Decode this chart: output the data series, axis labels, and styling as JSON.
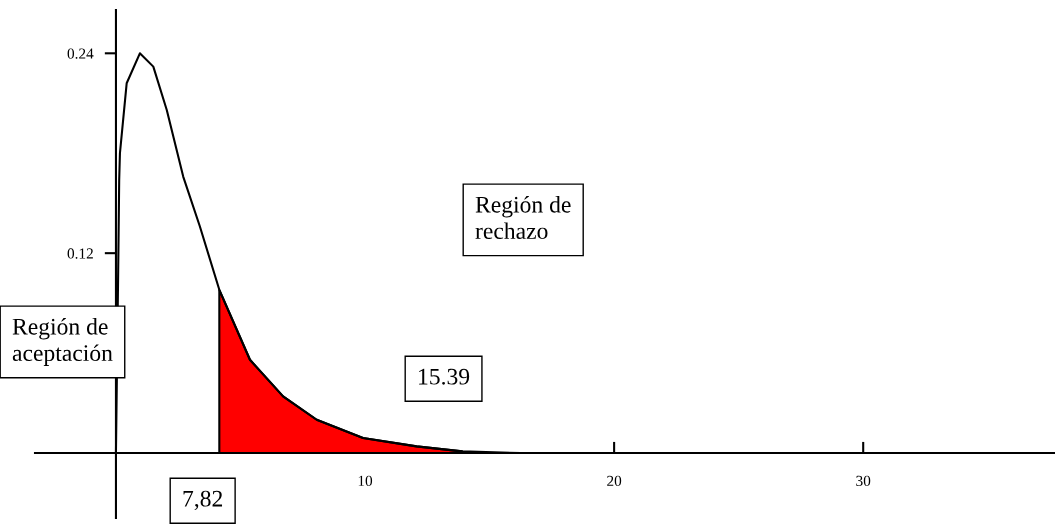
{
  "chart_data": {
    "type": "line",
    "series": [
      {
        "color": "#000000",
        "x": [
          0,
          0.09,
          0.13,
          0.16,
          0.43,
          0.96,
          1.5,
          2.04,
          2.7,
          3.37,
          4.15,
          5.38,
          6.71,
          8.06,
          9.92,
          12.07,
          13.9,
          16.2
        ],
        "values": [
          0,
          0.11,
          0.164,
          0.18,
          0.222,
          0.24,
          0.232,
          0.206,
          0.166,
          0.136,
          0.098,
          0.056,
          0.034,
          0.02,
          0.009,
          0.004,
          0.001,
          0
        ]
      },
      {
        "type": "area",
        "color": "#ff0000",
        "x": [
          4.15,
          5.38,
          6.71,
          8.06,
          9.92,
          12.07,
          13.9
        ],
        "values": [
          0.098,
          0.056,
          0.034,
          0.02,
          0.009,
          0.004,
          0.001
        ]
      }
    ],
    "xlim": [
      -3.25,
      37.7
    ],
    "ylim": [
      -0.039,
      0.266
    ],
    "xticks": [
      10,
      20,
      30
    ],
    "yticks": [
      0.12,
      0.24
    ],
    "grid": false,
    "annotations": [
      "Región de\naceptación",
      "Región de\nrechazo",
      "15.39",
      "7,82"
    ]
  }
}
